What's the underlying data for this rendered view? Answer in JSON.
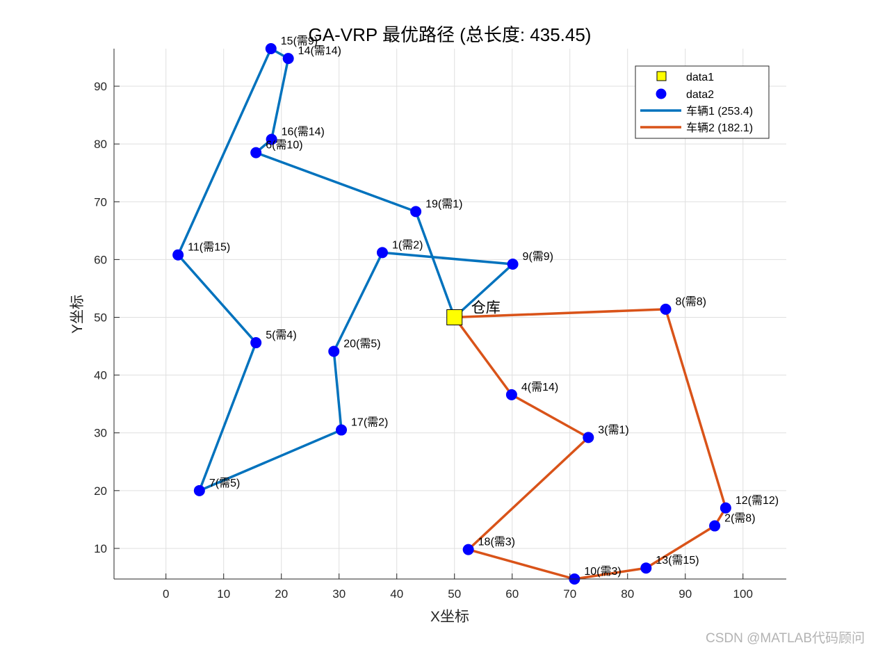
{
  "chart_data": {
    "type": "scatter",
    "title": "GA-VRP 最优路径 (总长度: 435.45)",
    "xlabel": "X坐标",
    "ylabel": "Y坐标",
    "xlim": [
      -9,
      107.5
    ],
    "ylim": [
      4.7,
      96.5
    ],
    "xticks": [
      0,
      10,
      20,
      30,
      40,
      50,
      60,
      70,
      80,
      90,
      100
    ],
    "yticks": [
      10,
      20,
      30,
      40,
      50,
      60,
      70,
      80,
      90
    ],
    "grid": true,
    "legend_position": "top-right",
    "depot": {
      "x": 50,
      "y": 50,
      "label": "仓库",
      "legend": "data1",
      "color": "#ffff00"
    },
    "customers_legend": "data2",
    "customer_color": "#0000ff",
    "customers": [
      {
        "id": 1,
        "x": 37.5,
        "y": 61.2,
        "label": "1(需2)"
      },
      {
        "id": 2,
        "x": 95.1,
        "y": 13.9,
        "label": "2(需8)"
      },
      {
        "id": 3,
        "x": 73.2,
        "y": 29.2,
        "label": "3(需1)"
      },
      {
        "id": 4,
        "x": 59.9,
        "y": 36.6,
        "label": "4(需14)"
      },
      {
        "id": 5,
        "x": 15.6,
        "y": 45.6,
        "label": "5(需4)"
      },
      {
        "id": 6,
        "x": 15.6,
        "y": 78.5,
        "label": "6(需10)"
      },
      {
        "id": 7,
        "x": 5.8,
        "y": 20.0,
        "label": "7(需5)"
      },
      {
        "id": 8,
        "x": 86.6,
        "y": 51.4,
        "label": "8(需8)"
      },
      {
        "id": 9,
        "x": 60.1,
        "y": 59.2,
        "label": "9(需9)"
      },
      {
        "id": 10,
        "x": 70.8,
        "y": 4.7,
        "label": "10(需3)"
      },
      {
        "id": 11,
        "x": 2.1,
        "y": 60.8,
        "label": "11(需15)"
      },
      {
        "id": 12,
        "x": 97.0,
        "y": 17.0,
        "label": "12(需12)"
      },
      {
        "id": 13,
        "x": 83.2,
        "y": 6.6,
        "label": "13(需15)"
      },
      {
        "id": 14,
        "x": 21.2,
        "y": 94.8,
        "label": "14(需14)"
      },
      {
        "id": 15,
        "x": 18.2,
        "y": 96.5,
        "label": "15(需9)"
      },
      {
        "id": 16,
        "x": 18.3,
        "y": 80.8,
        "label": "16(需14)"
      },
      {
        "id": 17,
        "x": 30.4,
        "y": 30.5,
        "label": "17(需2)"
      },
      {
        "id": 18,
        "x": 52.4,
        "y": 9.8,
        "label": "18(需3)"
      },
      {
        "id": 19,
        "x": 43.3,
        "y": 68.3,
        "label": "19(需1)"
      },
      {
        "id": 20,
        "x": 29.1,
        "y": 44.1,
        "label": "20(需5)"
      }
    ],
    "series": [
      {
        "name": "车辆1 (253.4)",
        "color": "#0072bd",
        "route": [
          0,
          9,
          1,
          20,
          17,
          7,
          5,
          11,
          15,
          14,
          16,
          6,
          19,
          0
        ]
      },
      {
        "name": "车辆2 (182.1)",
        "color": "#d95319",
        "route": [
          0,
          8,
          12,
          2,
          13,
          10,
          18,
          3,
          4,
          0
        ]
      }
    ]
  },
  "watermark": "CSDN @MATLAB代码顾问"
}
